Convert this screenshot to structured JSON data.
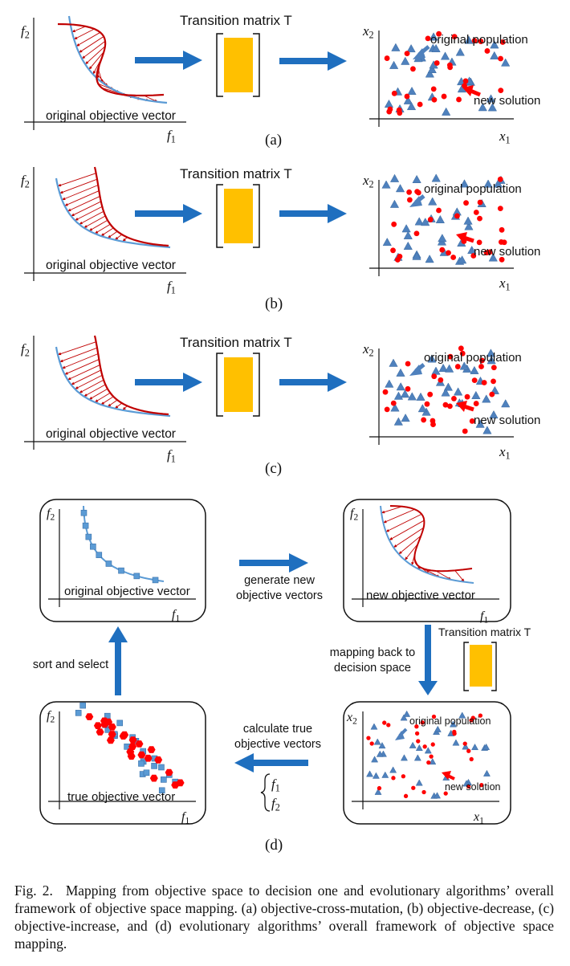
{
  "labels": {
    "transition_matrix": "Transition matrix  T",
    "transition_matrix_small": "Transition matrix  T",
    "original_objective_vector": "original objective vector",
    "new_objective_vector": "new objective vector",
    "true_objective_vector": "true objective vector",
    "original_population": "original population",
    "new_solution": "new solution",
    "f1": "f1",
    "f2": "f2",
    "x1": "x1",
    "x2": "x2"
  },
  "panels": {
    "a": "(a)",
    "b": "(b)",
    "c": "(c)",
    "d": "(d)"
  },
  "framework": {
    "generate_line1": "generate new",
    "generate_line2": "objective vectors",
    "mapping_line1": "mapping back to",
    "mapping_line2": "decision space",
    "calculate_line1": "calculate true",
    "calculate_line2": "objective vectors",
    "sort_select": "sort and select",
    "system_f1": "f1",
    "system_f2": "f2"
  },
  "caption": {
    "fig_no": "Fig. 2.",
    "text": "Mapping from objective space to decision one and evolutionary algorithms’ overall framework of objective space mapping. (a) objective-cross-mutation, (b) objective-decrease, (c) objective-increase, and (d) evolutionary algorithms’ overall framework of objective space mapping."
  },
  "colors": {
    "arrow_blue": "#1f6fbf",
    "curve_blue": "#5b9bd5",
    "curve_red": "#c00000",
    "matrix_fill": "#ffc000",
    "dot_red": "#ff0000",
    "triangle_blue": "#4f81bd"
  }
}
